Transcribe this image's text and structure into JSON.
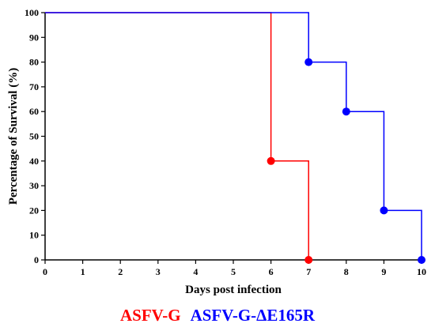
{
  "chart_data": {
    "type": "line",
    "step": true,
    "xlabel": "Days post infection",
    "ylabel": "Percentage of Survival (%)",
    "xlim": [
      0,
      10
    ],
    "ylim": [
      0,
      100
    ],
    "x_ticks": [
      0,
      1,
      2,
      3,
      4,
      5,
      6,
      7,
      8,
      9,
      10
    ],
    "y_ticks": [
      0,
      10,
      20,
      30,
      40,
      50,
      60,
      70,
      80,
      90,
      100
    ],
    "grid": false,
    "legend_position": "bottom",
    "series": [
      {
        "name": "ASFV-G",
        "color": "#ff0000",
        "x": [
          0,
          6,
          7
        ],
        "y": [
          100,
          40,
          0
        ],
        "markers_at": [
          6,
          7
        ]
      },
      {
        "name": "ASFV-G-ΔE165R",
        "color": "#0000ff",
        "x": [
          0,
          7,
          8,
          9,
          10
        ],
        "y": [
          100,
          80,
          60,
          20,
          0
        ],
        "markers_at": [
          7,
          8,
          9,
          10
        ]
      }
    ]
  }
}
